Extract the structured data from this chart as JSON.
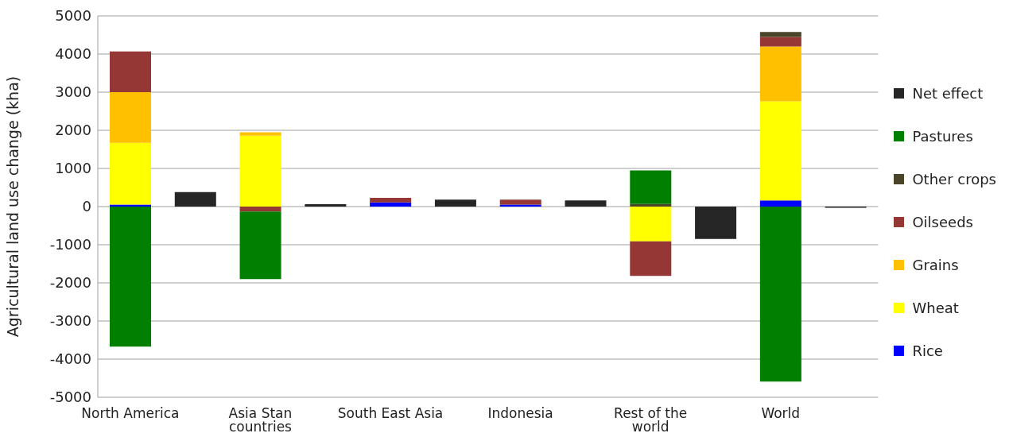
{
  "chart_data": {
    "type": "bar",
    "stacked": true,
    "ylabel": "Agricultural land use change (kha)",
    "categories": [
      "North America",
      null,
      "Asia Stan countries",
      null,
      "South East Asia",
      null,
      "Indonesia",
      null,
      "Rest of the world",
      null,
      "World",
      null
    ],
    "series": [
      {
        "name": "Rice",
        "color": "#0000ff",
        "values": [
          50,
          null,
          0,
          null,
          110,
          null,
          50,
          null,
          0,
          null,
          160,
          null
        ]
      },
      {
        "name": "Wheat",
        "color": "#ffff00",
        "values": [
          1620,
          null,
          1860,
          null,
          0,
          null,
          0,
          null,
          -910,
          null,
          2600,
          null
        ]
      },
      {
        "name": "Grains",
        "color": "#ffc000",
        "values": [
          1330,
          null,
          90,
          null,
          0,
          null,
          0,
          null,
          0,
          null,
          1440,
          null
        ]
      },
      {
        "name": "Oilseeds",
        "color": "#953735",
        "values": [
          1070,
          null,
          -130,
          null,
          120,
          null,
          130,
          null,
          -910,
          null,
          250,
          null
        ]
      },
      {
        "name": "Other crops",
        "color": "#4a452a",
        "values": [
          0,
          null,
          0,
          null,
          0,
          null,
          0,
          null,
          70,
          null,
          130,
          null
        ]
      },
      {
        "name": "Pastures",
        "color": "#007f00",
        "values": [
          -3670,
          null,
          -1770,
          null,
          null,
          null,
          null,
          null,
          880,
          null,
          -4590,
          null
        ]
      },
      {
        "name": "Net effect",
        "color": "#262626",
        "values": [
          null,
          380,
          null,
          60,
          null,
          180,
          null,
          160,
          null,
          -850,
          null,
          -30
        ]
      }
    ],
    "ylim": [
      -5000,
      5000
    ],
    "yticks": [
      -5000,
      -4000,
      -3000,
      -2000,
      -1000,
      0,
      1000,
      2000,
      3000,
      4000,
      5000
    ],
    "grid": "y",
    "legend": "right"
  }
}
